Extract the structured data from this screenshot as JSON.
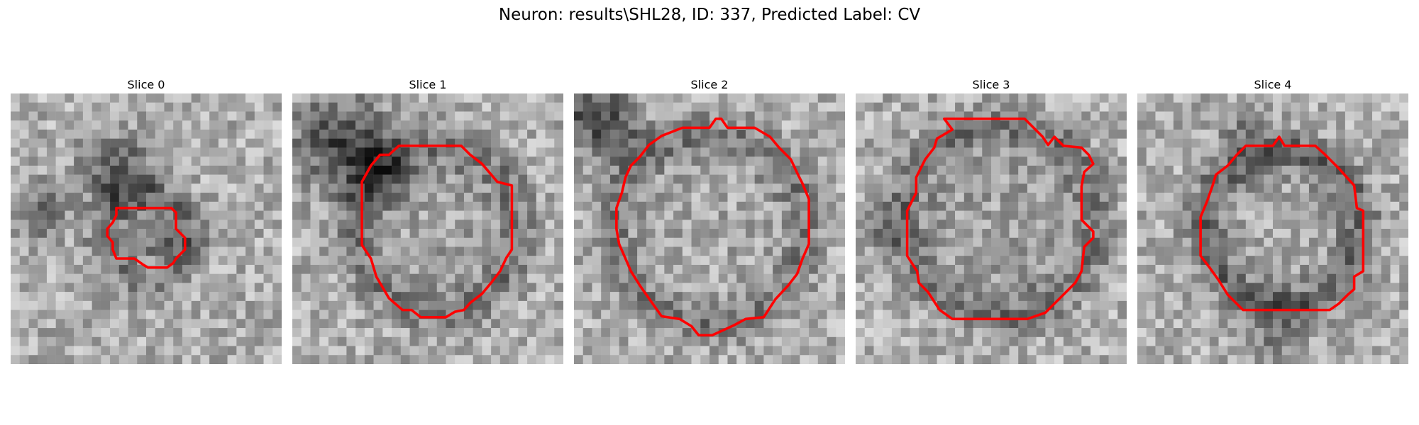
{
  "figure": {
    "title": "Neuron: results\\SHL28, ID: 337, Predicted Label: CV"
  },
  "colors": {
    "contour": "#ff0000",
    "background": "#ffffff"
  },
  "panels": [
    {
      "title": "Slice 0",
      "contour_label": "ROI contour"
    },
    {
      "title": "Slice 1",
      "contour_label": "ROI contour"
    },
    {
      "title": "Slice 2",
      "contour_label": "ROI contour"
    },
    {
      "title": "Slice 3",
      "contour_label": "ROI contour"
    },
    {
      "title": "Slice 4",
      "contour_label": "ROI contour"
    }
  ]
}
